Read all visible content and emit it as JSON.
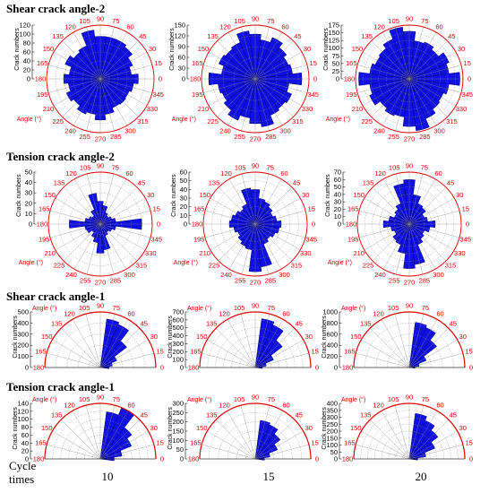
{
  "figure": {
    "cycle_label": "Cycle times",
    "columns": [
      "10",
      "15",
      "20"
    ]
  },
  "colors": {
    "bar": "#1010e0",
    "bar_edge": "#000080",
    "angle_axis": "#e00000",
    "grid": "#888888"
  },
  "chart_data": [
    {
      "row": 0,
      "title": "Shear crack angle-2",
      "type": "rose",
      "span": "full",
      "y_label": "Crack numbers",
      "angle_label": "Angle (°)",
      "charts": [
        {
          "cycle": "10",
          "r_ticks": [
            0,
            20,
            40,
            60,
            80,
            100,
            120
          ],
          "r_max": 120,
          "angles": [
            0,
            15,
            30,
            45,
            60,
            75,
            90,
            105,
            120,
            135,
            150,
            165,
            180,
            195,
            210,
            225,
            240,
            255,
            270,
            285,
            300,
            315,
            330,
            345
          ],
          "values": [
            85,
            70,
            78,
            90,
            95,
            95,
            95,
            110,
            80,
            75,
            85,
            70,
            82,
            72,
            82,
            75,
            85,
            80,
            92,
            80,
            70,
            72,
            70,
            75
          ]
        },
        {
          "cycle": "15",
          "r_ticks": [
            0,
            30,
            60,
            90,
            120,
            150
          ],
          "r_max": 150,
          "angles": [
            0,
            15,
            30,
            45,
            60,
            75,
            90,
            105,
            120,
            135,
            150,
            165,
            180,
            195,
            210,
            225,
            240,
            255,
            270,
            285,
            300,
            315,
            330,
            345
          ],
          "values": [
            130,
            105,
            100,
            110,
            125,
            110,
            125,
            135,
            110,
            105,
            110,
            95,
            130,
            105,
            100,
            110,
            125,
            110,
            125,
            135,
            110,
            105,
            110,
            95
          ]
        },
        {
          "cycle": "20",
          "r_ticks": [
            0,
            25,
            50,
            75,
            100,
            125,
            150,
            175
          ],
          "r_max": 175,
          "angles": [
            0,
            15,
            30,
            45,
            60,
            75,
            90,
            105,
            120,
            135,
            150,
            165,
            180,
            195,
            210,
            225,
            240,
            255,
            270,
            285,
            300,
            315,
            330,
            345
          ],
          "values": [
            165,
            130,
            140,
            120,
            130,
            125,
            155,
            170,
            140,
            125,
            120,
            130,
            165,
            130,
            140,
            120,
            130,
            125,
            155,
            170,
            140,
            125,
            120,
            130
          ]
        }
      ]
    },
    {
      "row": 1,
      "title": "Tension crack angle-2",
      "type": "rose",
      "span": "full",
      "y_label": "Crack numbers",
      "angle_label": "Angle (°)",
      "charts": [
        {
          "cycle": "10",
          "r_ticks": [
            0,
            10,
            20,
            30,
            40,
            50
          ],
          "r_max": 50,
          "angles": [
            0,
            15,
            30,
            45,
            60,
            75,
            90,
            105,
            120,
            135,
            150,
            165,
            180,
            195,
            210,
            225,
            240,
            255,
            270,
            285,
            300,
            315,
            330,
            345
          ],
          "values": [
            40,
            15,
            12,
            10,
            12,
            18,
            22,
            30,
            15,
            10,
            12,
            15,
            30,
            15,
            14,
            10,
            14,
            18,
            28,
            25,
            12,
            10,
            12,
            15
          ]
        },
        {
          "cycle": "15",
          "r_ticks": [
            0,
            10,
            20,
            30,
            40,
            50,
            60
          ],
          "r_max": 60,
          "angles": [
            0,
            15,
            30,
            45,
            60,
            75,
            90,
            105,
            120,
            135,
            150,
            165,
            180,
            195,
            210,
            225,
            240,
            255,
            270,
            285,
            300,
            315,
            330,
            345
          ],
          "values": [
            30,
            25,
            22,
            25,
            28,
            30,
            40,
            42,
            25,
            22,
            25,
            28,
            30,
            25,
            22,
            25,
            28,
            30,
            55,
            50,
            25,
            22,
            25,
            28
          ]
        },
        {
          "cycle": "20",
          "r_ticks": [
            0,
            10,
            20,
            30,
            40,
            50,
            60,
            70
          ],
          "r_max": 70,
          "angles": [
            0,
            15,
            30,
            45,
            60,
            75,
            90,
            105,
            120,
            135,
            150,
            165,
            180,
            195,
            210,
            225,
            240,
            255,
            270,
            285,
            300,
            315,
            330,
            345
          ],
          "values": [
            35,
            25,
            22,
            28,
            30,
            40,
            60,
            55,
            30,
            25,
            22,
            28,
            35,
            25,
            22,
            28,
            30,
            40,
            60,
            55,
            30,
            25,
            22,
            28
          ]
        }
      ]
    },
    {
      "row": 2,
      "title": "Shear crack angle-1",
      "type": "rose",
      "span": "half",
      "y_label": "Crack numbers",
      "angle_label": "Angle (°)",
      "charts": [
        {
          "cycle": "10",
          "r_ticks": [
            0,
            100,
            200,
            300,
            400,
            500
          ],
          "r_max": 500,
          "angles": [
            0,
            15,
            30,
            45,
            60,
            75
          ],
          "values": [
            80,
            110,
            160,
            300,
            420,
            440
          ]
        },
        {
          "cycle": "15",
          "r_ticks": [
            0,
            100,
            200,
            300,
            400,
            500,
            600,
            700
          ],
          "r_max": 700,
          "angles": [
            0,
            15,
            30,
            45,
            60,
            75
          ],
          "values": [
            90,
            140,
            250,
            430,
            580,
            620
          ]
        },
        {
          "cycle": "20",
          "r_ticks": [
            0,
            200,
            400,
            600,
            800,
            1000
          ],
          "r_max": 1000,
          "angles": [
            0,
            15,
            30,
            45,
            60,
            75
          ],
          "values": [
            100,
            180,
            330,
            620,
            780,
            820
          ]
        }
      ]
    },
    {
      "row": 3,
      "title": "Tension crack angle-1",
      "type": "rose",
      "span": "half",
      "y_label": "Crack numbers",
      "angle_label": "Angle (°)",
      "charts": [
        {
          "cycle": "10",
          "r_ticks": [
            0,
            20,
            40,
            60,
            80,
            100,
            120,
            140
          ],
          "r_max": 140,
          "angles": [
            0,
            15,
            30,
            45,
            60,
            75
          ],
          "values": [
            35,
            55,
            85,
            100,
            140,
            120
          ]
        },
        {
          "cycle": "15",
          "r_ticks": [
            0,
            50,
            100,
            150,
            200,
            250,
            300
          ],
          "r_max": 300,
          "angles": [
            0,
            15,
            30,
            45,
            60,
            75
          ],
          "values": [
            50,
            80,
            130,
            170,
            200,
            210
          ]
        },
        {
          "cycle": "20",
          "r_ticks": [
            0,
            50,
            100,
            150,
            200,
            250,
            300,
            350,
            400
          ],
          "r_max": 400,
          "angles": [
            0,
            15,
            30,
            45,
            60,
            75
          ],
          "values": [
            60,
            120,
            200,
            260,
            300,
            330
          ]
        }
      ]
    }
  ]
}
